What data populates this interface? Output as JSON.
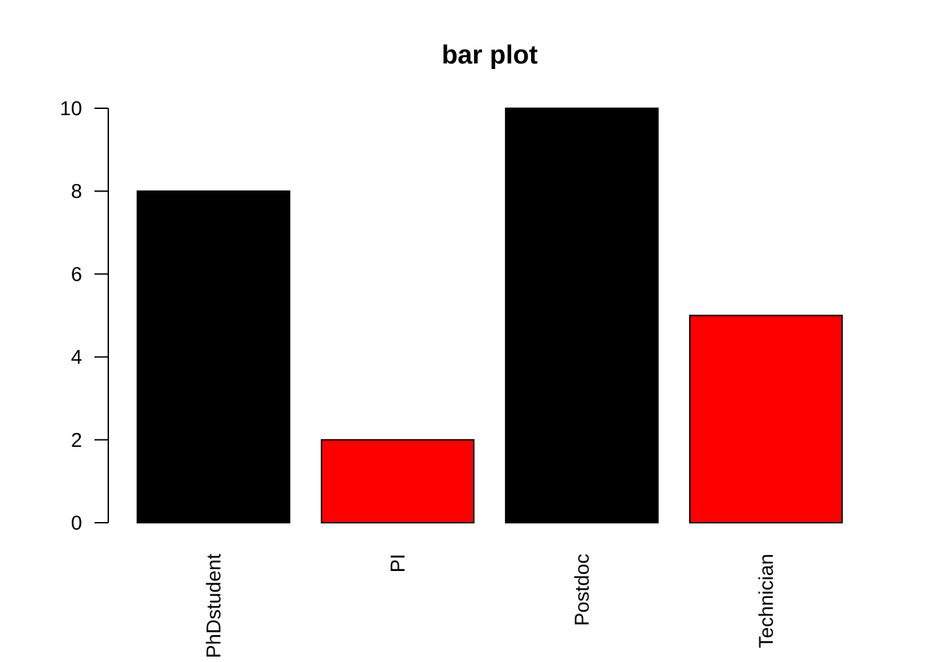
{
  "chart_data": {
    "type": "bar",
    "title": "bar plot",
    "xlabel": "",
    "ylabel": "",
    "categories": [
      "PhDstudent",
      "PI",
      "Postdoc",
      "Technician"
    ],
    "values": [
      8,
      2,
      10,
      5
    ],
    "bar_colors": [
      "#000000",
      "#ff0000",
      "#000000",
      "#ff0000"
    ],
    "bar_border_color": "#000000",
    "yticks": [
      0,
      2,
      4,
      6,
      8,
      10
    ],
    "ylim": [
      0,
      10
    ],
    "grid": false,
    "legend": "none",
    "category_label_orientation": "vertical"
  }
}
